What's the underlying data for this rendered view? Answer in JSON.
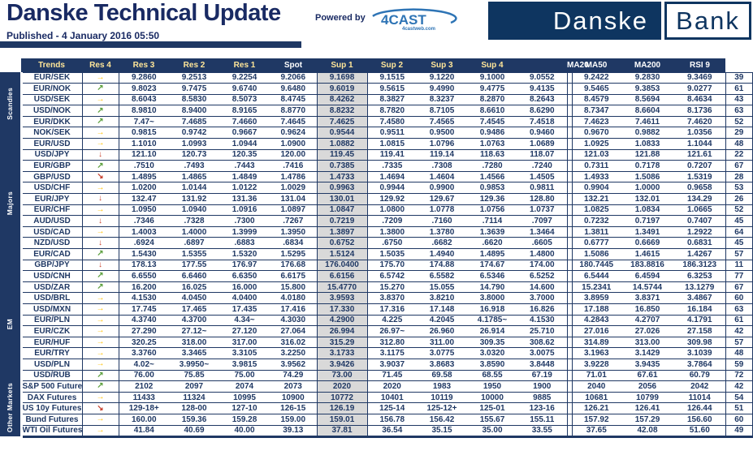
{
  "header": {
    "title": "Danske Technical Update",
    "published": "Published - 4 January 2016 05:50",
    "powered_by": "Powered by",
    "vendor_logo": "4CAST",
    "vendor_sub": "4castweb.com",
    "bank_logo": {
      "left": "Danske",
      "right": "Bank"
    }
  },
  "colors": {
    "navy": "#1F3864",
    "spot_bg": "#D9D9D9",
    "header_label_gold": "#FFE699",
    "trend_up_green": "#5EA140",
    "trend_side_gold": "#FFC000",
    "trend_down_red": "#C8432F"
  },
  "trends": {
    "up": {
      "glyph": "↗",
      "color": "#5EA140",
      "name": "trend-up-icon"
    },
    "side": {
      "glyph": "→",
      "color": "#FFC000",
      "name": "trend-sideways-icon"
    },
    "down": {
      "glyph": "↓",
      "color": "#C8432F",
      "name": "trend-down-icon"
    },
    "downright": {
      "glyph": "↘",
      "color": "#C8432F",
      "name": "trend-down-diagonal-icon"
    }
  },
  "table": {
    "columns": [
      "Trends",
      "Res 4",
      "Res 3",
      "Res 2",
      "Res 1",
      "Spot",
      "Sup 1",
      "Sup 2",
      "Sup 3",
      "Sup 4",
      "MA20",
      "MA50",
      "MA200",
      "RSI 9"
    ],
    "groups": [
      {
        "label": "Scandies",
        "rows": [
          {
            "pair": "EUR/SEK",
            "trend": "side",
            "res": [
              "9.2860",
              "9.2513",
              "9.2254",
              "9.2066"
            ],
            "spot": "9.1698",
            "sup": [
              "9.1515",
              "9.1220",
              "9.1000",
              "9.0552"
            ],
            "ma": [
              "9.2422",
              "9.2830",
              "9.3469"
            ],
            "rsi": "39"
          },
          {
            "pair": "EUR/NOK",
            "trend": "up",
            "res": [
              "9.8023",
              "9.7475",
              "9.6740",
              "9.6480"
            ],
            "spot": "9.6019",
            "sup": [
              "9.5615",
              "9.4990",
              "9.4775",
              "9.4135"
            ],
            "ma": [
              "9.5465",
              "9.3853",
              "9.0277"
            ],
            "rsi": "61"
          },
          {
            "pair": "USD/SEK",
            "trend": "side",
            "res": [
              "8.6043",
              "8.5830",
              "8.5073",
              "8.4745"
            ],
            "spot": "8.4262",
            "sup": [
              "8.3827",
              "8.3237",
              "8.2870",
              "8.2643"
            ],
            "ma": [
              "8.4579",
              "8.5694",
              "8.4634"
            ],
            "rsi": "43"
          },
          {
            "pair": "USD/NOK",
            "trend": "up",
            "res": [
              "8.9810",
              "8.9400",
              "8.9165",
              "8.8770"
            ],
            "spot": "8.8232",
            "sup": [
              "8.7820",
              "8.7105",
              "8.6610",
              "8.6290"
            ],
            "ma": [
              "8.7347",
              "8.6604",
              "8.1736"
            ],
            "rsi": "63"
          },
          {
            "pair": "EUR/DKK",
            "trend": "up",
            "res": [
              "7.47~",
              "7.4685",
              "7.4660",
              "7.4645"
            ],
            "spot": "7.4625",
            "sup": [
              "7.4580",
              "7.4565",
              "7.4545",
              "7.4518"
            ],
            "ma": [
              "7.4623",
              "7.4611",
              "7.4620"
            ],
            "rsi": "52"
          },
          {
            "pair": "NOK/SEK",
            "trend": "side",
            "res": [
              "0.9815",
              "0.9742",
              "0.9667",
              "0.9624"
            ],
            "spot": "0.9544",
            "sup": [
              "0.9511",
              "0.9500",
              "0.9486",
              "0.9460"
            ],
            "ma": [
              "0.9670",
              "0.9882",
              "1.0356"
            ],
            "rsi": "29"
          }
        ]
      },
      {
        "label": "Majors",
        "rows": [
          {
            "pair": "EUR/USD",
            "trend": "side",
            "res": [
              "1.1010",
              "1.0993",
              "1.0944",
              "1.0900"
            ],
            "spot": "1.0882",
            "sup": [
              "1.0815",
              "1.0796",
              "1.0763",
              "1.0689"
            ],
            "ma": [
              "1.0925",
              "1.0833",
              "1.1044"
            ],
            "rsi": "48"
          },
          {
            "pair": "USD/JPY",
            "trend": "down",
            "res": [
              "121.10",
              "120.73",
              "120.35",
              "120.00"
            ],
            "spot": "119.45",
            "sup": [
              "119.41",
              "119.14",
              "118.63",
              "118.07"
            ],
            "ma": [
              "121.03",
              "121.88",
              "121.61"
            ],
            "rsi": "22"
          },
          {
            "pair": "EUR/GBP",
            "trend": "up",
            "res": [
              ".7510",
              ".7493",
              ".7443",
              ".7416"
            ],
            "spot": "0.7385",
            "sup": [
              ".7335",
              ".7308",
              ".7280",
              ".7240"
            ],
            "ma": [
              "0.7311",
              "0.7178",
              "0.7207"
            ],
            "rsi": "67"
          },
          {
            "pair": "GBP/USD",
            "trend": "downright",
            "res": [
              "1.4895",
              "1.4865",
              "1.4849",
              "1.4786"
            ],
            "spot": "1.4733",
            "sup": [
              "1.4694",
              "1.4604",
              "1.4566",
              "1.4505"
            ],
            "ma": [
              "1.4933",
              "1.5086",
              "1.5319"
            ],
            "rsi": "28"
          },
          {
            "pair": "USD/CHF",
            "trend": "side",
            "res": [
              "1.0200",
              "1.0144",
              "1.0122",
              "1.0029"
            ],
            "spot": "0.9963",
            "sup": [
              "0.9944",
              "0.9900",
              "0.9853",
              "0.9811"
            ],
            "ma": [
              "0.9904",
              "1.0000",
              "0.9658"
            ],
            "rsi": "53"
          },
          {
            "pair": "EUR/JPY",
            "trend": "down",
            "res": [
              "132.47",
              "131.92",
              "131.36",
              "131.04"
            ],
            "spot": "130.01",
            "sup": [
              "129.92",
              "129.67",
              "129.36",
              "128.80"
            ],
            "ma": [
              "132.21",
              "132.01",
              "134.29"
            ],
            "rsi": "26"
          },
          {
            "pair": "EUR/CHF",
            "trend": "side",
            "res": [
              "1.0950",
              "1.0940",
              "1.0916",
              "1.0897"
            ],
            "spot": "1.0847",
            "sup": [
              "1.0800",
              "1.0778",
              "1.0756",
              "1.0737"
            ],
            "ma": [
              "1.0825",
              "1.0834",
              "1.0665"
            ],
            "rsi": "52"
          },
          {
            "pair": "AUD/USD",
            "trend": "down",
            "res": [
              ".7346",
              ".7328",
              ".7300",
              ".7267"
            ],
            "spot": "0.7219",
            "sup": [
              ".7209",
              ".7160",
              ".7114",
              ".7097"
            ],
            "ma": [
              "0.7232",
              "0.7197",
              "0.7407"
            ],
            "rsi": "45"
          },
          {
            "pair": "USD/CAD",
            "trend": "side",
            "res": [
              "1.4003",
              "1.4000",
              "1.3999",
              "1.3950"
            ],
            "spot": "1.3897",
            "sup": [
              "1.3800",
              "1.3780",
              "1.3639",
              "1.3464"
            ],
            "ma": [
              "1.3811",
              "1.3491",
              "1.2922"
            ],
            "rsi": "64"
          },
          {
            "pair": "NZD/USD",
            "trend": "down",
            "res": [
              ".6924",
              ".6897",
              ".6883",
              ".6834"
            ],
            "spot": "0.6752",
            "sup": [
              ".6750",
              ".6682",
              ".6620",
              ".6605"
            ],
            "ma": [
              "0.6777",
              "0.6669",
              "0.6831"
            ],
            "rsi": "45"
          },
          {
            "pair": "EUR/CAD",
            "trend": "up",
            "res": [
              "1.5430",
              "1.5355",
              "1.5320",
              "1.5295"
            ],
            "spot": "1.5124",
            "sup": [
              "1.5035",
              "1.4940",
              "1.4895",
              "1.4800"
            ],
            "ma": [
              "1.5086",
              "1.4615",
              "1.4267"
            ],
            "rsi": "57"
          },
          {
            "pair": "GBP/JPY",
            "trend": "down",
            "res": [
              "178.13",
              "177.55",
              "176.97",
              "176.68"
            ],
            "spot": "176.0400",
            "sup": [
              "175.70",
              "174.88",
              "174.67",
              "174.00"
            ],
            "ma": [
              "180.7445",
              "183.8816",
              "186.3123"
            ],
            "rsi": "11"
          }
        ]
      },
      {
        "label": "EM",
        "rows": [
          {
            "pair": "USD/CNH",
            "trend": "up",
            "res": [
              "6.6550",
              "6.6460",
              "6.6350",
              "6.6175"
            ],
            "spot": "6.6156",
            "sup": [
              "6.5742",
              "6.5582",
              "6.5346",
              "6.5252"
            ],
            "ma": [
              "6.5444",
              "6.4594",
              "6.3253"
            ],
            "rsi": "77"
          },
          {
            "pair": "USD/ZAR",
            "trend": "up",
            "res": [
              "16.200",
              "16.025",
              "16.000",
              "15.800"
            ],
            "spot": "15.4770",
            "sup": [
              "15.270",
              "15.055",
              "14.790",
              "14.600"
            ],
            "ma": [
              "15.2341",
              "14.5744",
              "13.1279"
            ],
            "rsi": "67"
          },
          {
            "pair": "USD/BRL",
            "trend": "side",
            "res": [
              "4.1530",
              "4.0450",
              "4.0400",
              "4.0180"
            ],
            "spot": "3.9593",
            "sup": [
              "3.8370",
              "3.8210",
              "3.8000",
              "3.7000"
            ],
            "ma": [
              "3.8959",
              "3.8371",
              "3.4867"
            ],
            "rsi": "60"
          },
          {
            "pair": "USD/MXN",
            "trend": "side",
            "res": [
              "17.745",
              "17.465",
              "17.435",
              "17.416"
            ],
            "spot": "17.330",
            "sup": [
              "17.316",
              "17.148",
              "16.918",
              "16.826"
            ],
            "ma": [
              "17.188",
              "16.850",
              "16.184"
            ],
            "rsi": "63"
          },
          {
            "pair": "EUR/PLN",
            "trend": "side",
            "res": [
              "4.3740",
              "4.3700",
              "4.34~",
              "4.3030"
            ],
            "spot": "4.2900",
            "sup": [
              "4.225",
              "4.2045",
              "4.1785~",
              "4.1530"
            ],
            "ma": [
              "4.2843",
              "4.2707",
              "4.1791"
            ],
            "rsi": "61"
          },
          {
            "pair": "EUR/CZK",
            "trend": "side",
            "res": [
              "27.290",
              "27.12~",
              "27.120",
              "27.064"
            ],
            "spot": "26.994",
            "sup": [
              "26.97~",
              "26.960",
              "26.914",
              "25.710"
            ],
            "ma": [
              "27.016",
              "27.026",
              "27.158"
            ],
            "rsi": "42"
          },
          {
            "pair": "EUR/HUF",
            "trend": "side",
            "res": [
              "320.25",
              "318.00",
              "317.00",
              "316.02"
            ],
            "spot": "315.29",
            "sup": [
              "312.80",
              "311.00",
              "309.35",
              "308.62"
            ],
            "ma": [
              "314.89",
              "313.00",
              "309.98"
            ],
            "rsi": "57"
          },
          {
            "pair": "EUR/TRY",
            "trend": "side",
            "res": [
              "3.3760",
              "3.3465",
              "3.3105",
              "3.2250"
            ],
            "spot": "3.1733",
            "sup": [
              "3.1175",
              "3.0775",
              "3.0320",
              "3.0075"
            ],
            "ma": [
              "3.1963",
              "3.1429",
              "3.1039"
            ],
            "rsi": "48"
          },
          {
            "pair": "USD/PLN",
            "trend": "side",
            "res": [
              "4.02~",
              "3.9950~",
              "3.9815",
              "3.9562"
            ],
            "spot": "3.9426",
            "sup": [
              "3.9037",
              "3.8683",
              "3.8590",
              "3.8448"
            ],
            "ma": [
              "3.9228",
              "3.9435",
              "3.7864"
            ],
            "rsi": "59"
          },
          {
            "pair": "USD/RUB",
            "trend": "up",
            "res": [
              "76.00",
              "75.85",
              "75.00",
              "74.29"
            ],
            "spot": "73.00",
            "sup": [
              "71.45",
              "69.58",
              "68.55",
              "67.19"
            ],
            "ma": [
              "71.01",
              "67.61",
              "60.79"
            ],
            "rsi": "72"
          }
        ]
      },
      {
        "label": "Other Markets",
        "rows": [
          {
            "pair": "S&P 500 Futures",
            "trend": "up",
            "res": [
              "2102",
              "2097",
              "2074",
              "2073"
            ],
            "spot": "2020",
            "sup": [
              "2020",
              "1983",
              "1950",
              "1900"
            ],
            "ma": [
              "2040",
              "2056",
              "2042"
            ],
            "rsi": "42"
          },
          {
            "pair": "DAX Futures",
            "trend": "side",
            "res": [
              "11433",
              "11324",
              "10995",
              "10900"
            ],
            "spot": "10772",
            "sup": [
              "10401",
              "10119",
              "10000",
              "9885"
            ],
            "ma": [
              "10681",
              "10799",
              "11014"
            ],
            "rsi": "54"
          },
          {
            "pair": "US 10y Futures",
            "trend": "downright",
            "res": [
              "129-18+",
              "128-00",
              "127-10",
              "126-15"
            ],
            "spot": "126.19",
            "sup": [
              "125-14",
              "125-12+",
              "125-01",
              "123-16"
            ],
            "ma": [
              "126.21",
              "126.41",
              "126.44"
            ],
            "rsi": "51"
          },
          {
            "pair": "Bund Futures",
            "trend": "side",
            "res": [
              "160.00",
              "159.36",
              "159.28",
              "159.00"
            ],
            "spot": "159.01",
            "sup": [
              "156.78",
              "156.42",
              "155.67",
              "155.11"
            ],
            "ma": [
              "157.92",
              "157.29",
              "156.60"
            ],
            "rsi": "60"
          },
          {
            "pair": "WTI Oil Futures",
            "trend": "side",
            "res": [
              "41.84",
              "40.69",
              "40.00",
              "39.13"
            ],
            "spot": "37.81",
            "sup": [
              "36.54",
              "35.15",
              "35.00",
              "33.55"
            ],
            "ma": [
              "37.65",
              "42.08",
              "51.60"
            ],
            "rsi": "49"
          }
        ]
      }
    ]
  }
}
